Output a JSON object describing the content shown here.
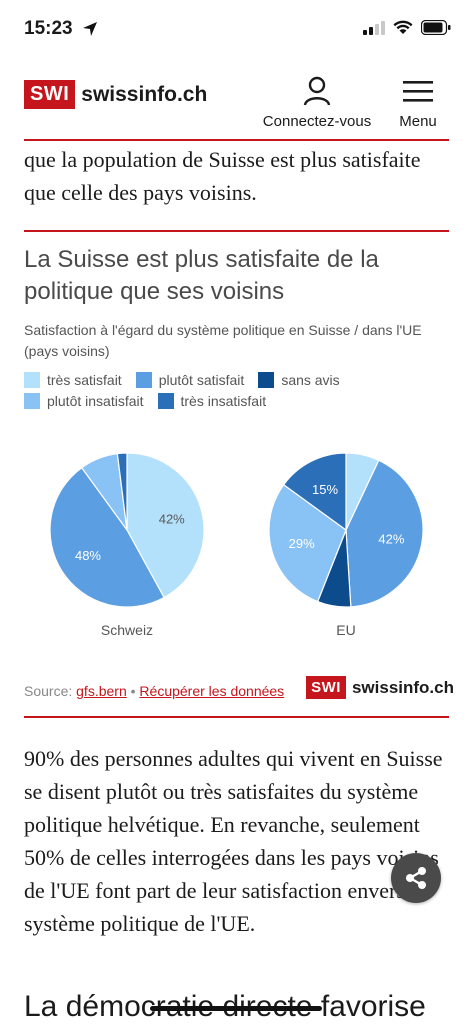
{
  "status_bar": {
    "time": "15:23"
  },
  "header": {
    "logo_badge": "SWI",
    "logo_text": "swissinfo.ch",
    "login_label": "Connectez-vous",
    "menu_label": "Menu"
  },
  "intro_text": "que la population de Suisse est plus satisfaite que celle des pays voisins.",
  "chart": {
    "title": "La Suisse est plus satisfaite de la politique que ses voisins",
    "subtitle": "Satisfaction à l'égard du système politique en Suisse / dans l'UE (pays voisins)",
    "legend": [
      {
        "label": "très satisfait",
        "color": "#b3e0fb"
      },
      {
        "label": "plutôt satisfait",
        "color": "#5b9ee2"
      },
      {
        "label": "sans avis",
        "color": "#0d4c8c"
      },
      {
        "label": "plutôt insatisfait",
        "color": "#89c2f5"
      },
      {
        "label": "très insatisfait",
        "color": "#2b6fb8"
      }
    ]
  },
  "chart_data": {
    "type": "pie",
    "title": "La Suisse est plus satisfaite de la politique que ses voisins",
    "subtitle": "Satisfaction à l'égard du système politique en Suisse / dans l'UE (pays voisins)",
    "categories": [
      "très satisfait",
      "plutôt satisfait",
      "sans avis",
      "plutôt insatisfait",
      "très insatisfait"
    ],
    "charts": [
      {
        "name": "Schweiz",
        "values": [
          42,
          48,
          0,
          8,
          2
        ],
        "labels": [
          "42%",
          "48%",
          "",
          "",
          ""
        ]
      },
      {
        "name": "EU",
        "values": [
          7,
          42,
          7,
          29,
          15
        ],
        "labels": [
          "",
          "42%",
          "",
          "29%",
          "15%"
        ]
      }
    ]
  },
  "source": {
    "prefix": "Source:",
    "source_link": "gfs.bern",
    "separator": "•",
    "data_link": "Récupérer les données",
    "logo_badge": "SWI",
    "logo_text": "swissinfo.ch"
  },
  "main_paragraph": "90% des personnes adultes qui vivent en Suisse se disent plutôt ou très satisfaites du système politique helvétique. En revanche, seulement 50% de celles interrogées dans les pays voisins de l'UE font part de leur satisfaction envers le système politique de l'UE.",
  "next_heading": "La démocratie directe favorise"
}
